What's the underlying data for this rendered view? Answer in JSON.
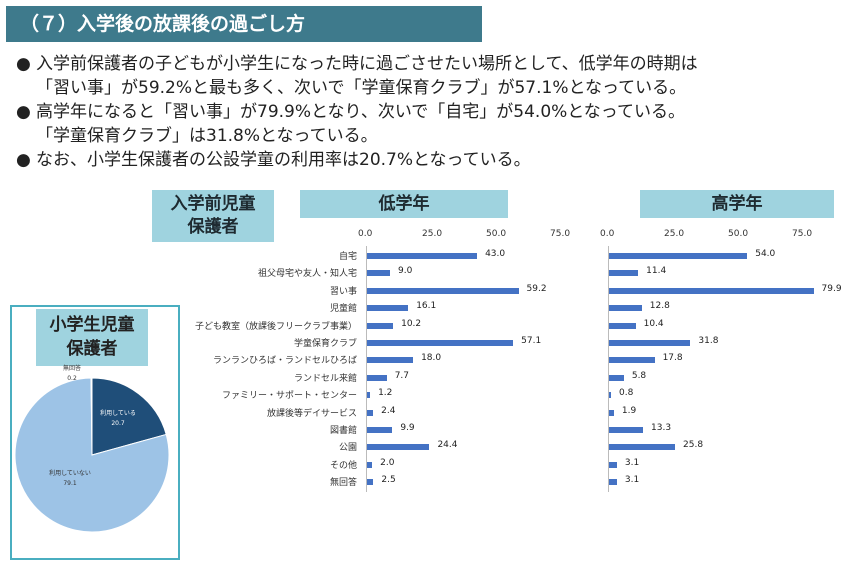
{
  "title": "（７）入学後の放課後の過ごし方",
  "bullets": [
    [
      "入学前保護者の子どもが小学生になった時に過ごさせたい場所として、低学年の時期は",
      "「習い事」が59.2%と最も多く、次いで「学童保育クラブ」が57.1%となっている。"
    ],
    [
      "高学年になると「習い事」が79.9%となり、次いで「自宅」が54.0%となっている。",
      "「学童保育クラブ」は31.8%となっている。"
    ],
    [
      "なお、小学生保護者の公設学童の利用率は20.7%となっている。"
    ]
  ],
  "bullet_mark": "●",
  "labels": {
    "preschool_line1": "入学前児童",
    "preschool_line2": "保護者",
    "elementary_line1": "小学生児童",
    "elementary_line2": "保護者"
  },
  "colors": {
    "bar": "#4472c4",
    "pie_dark": "#1f4e79",
    "pie_light": "#9dc3e6",
    "title_bg": "#3e7a8c",
    "label_bg": "#9fd3df"
  },
  "chart_data": [
    {
      "type": "bar",
      "orientation": "horizontal",
      "title": "低学年",
      "xlim": [
        0,
        90
      ],
      "ticks": [
        "0.0",
        "25.0",
        "50.0",
        "75.0"
      ],
      "tick_values": [
        0,
        25,
        50,
        75
      ],
      "categories": [
        "自宅",
        "祖父母宅や友人・知人宅",
        "習い事",
        "児童館",
        "子ども教室（放課後フリークラブ事業）",
        "学童保育クラブ",
        "ランランひろば・ランドセルひろば",
        "ランドセル来館",
        "ファミリー・サポート・センター",
        "放課後等デイサービス",
        "図書館",
        "公園",
        "その他",
        "無回答"
      ],
      "values": [
        43.0,
        9.0,
        59.2,
        16.1,
        10.2,
        57.1,
        18.0,
        7.7,
        1.2,
        2.4,
        9.9,
        24.4,
        2.0,
        2.5
      ]
    },
    {
      "type": "bar",
      "orientation": "horizontal",
      "title": "高学年",
      "xlim": [
        0,
        90
      ],
      "ticks": [
        "0.0",
        "25.0",
        "50.0",
        "75.0"
      ],
      "tick_values": [
        0,
        25,
        50,
        75
      ],
      "categories": [
        "自宅",
        "祖父母宅や友人・知人宅",
        "習い事",
        "児童館",
        "子ども教室（放課後フリークラブ事業）",
        "学童保育クラブ",
        "ランランひろば・ランドセルひろば",
        "ランドセル来館",
        "ファミリー・サポート・センター",
        "放課後等デイサービス",
        "図書館",
        "公園",
        "その他",
        "無回答"
      ],
      "values": [
        54.0,
        11.4,
        79.9,
        12.8,
        10.4,
        31.8,
        17.8,
        5.8,
        0.8,
        1.9,
        13.3,
        25.8,
        3.1,
        3.1
      ]
    },
    {
      "type": "pie",
      "title": "小学生児童保護者",
      "slices": [
        {
          "label": "利用している",
          "value": 20.7
        },
        {
          "label": "利用していない",
          "value": 79.1
        },
        {
          "label": "無回答",
          "value": 0.2
        }
      ]
    }
  ]
}
